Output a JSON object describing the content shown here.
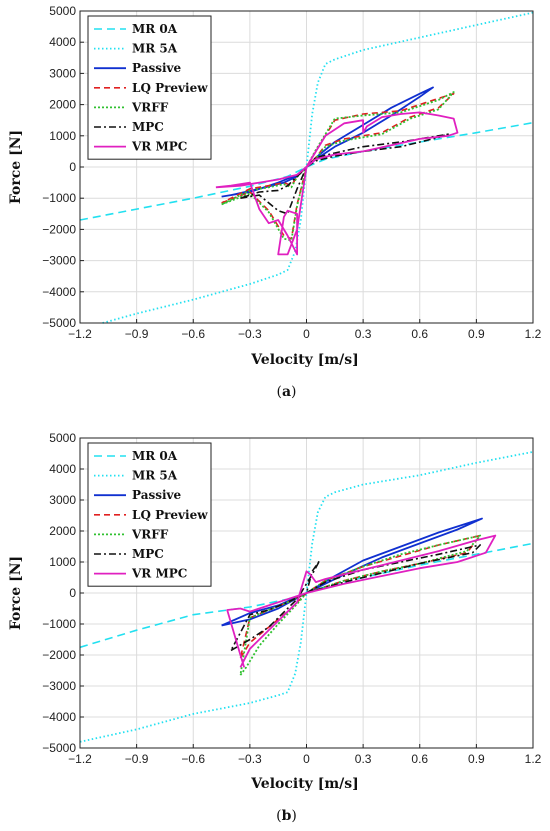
{
  "chart_data": [
    {
      "type": "line",
      "caption": {
        "open": "(",
        "letter": "a",
        "close": ")"
      },
      "xlabel": "Velocity [m/s]",
      "ylabel": "Force [N]",
      "xlim": [
        -1.2,
        1.2
      ],
      "ylim": [
        -5000,
        5000
      ],
      "xticks": [
        -1.2,
        -0.9,
        -0.6,
        -0.3,
        0,
        0.3,
        0.6,
        0.9,
        1.2
      ],
      "xtick_labels": [
        "−1.2",
        "−0.9",
        "−0.6",
        "−0.3",
        "0",
        "0.3",
        "0.6",
        "0.9",
        "1.2"
      ],
      "yticks": [
        -5000,
        -4000,
        -3000,
        -2000,
        -1000,
        0,
        1000,
        2000,
        3000,
        4000,
        5000
      ],
      "ytick_labels": [
        "−5000",
        "−4000",
        "−3000",
        "−2000",
        "−1000",
        "0",
        "1000",
        "2000",
        "3000",
        "4000",
        "5000"
      ],
      "grid": true,
      "legend_position": "top-left",
      "series": [
        {
          "name": "MR 0A",
          "color": "#22e0f0",
          "dash": "8,5",
          "width": 1.6,
          "x": [
            -1.2,
            -0.9,
            -0.6,
            -0.3,
            -0.1,
            0,
            0.1,
            0.3,
            0.6,
            0.9,
            1.2
          ],
          "y": [
            -1700,
            -1350,
            -1000,
            -620,
            -300,
            0,
            250,
            500,
            800,
            1100,
            1420
          ]
        },
        {
          "name": "MR 5A",
          "color": "#22e0f0",
          "dash": "1.5,2.5",
          "width": 1.8,
          "x": [
            -1.08,
            -0.9,
            -0.6,
            -0.3,
            -0.15,
            -0.1,
            -0.06,
            -0.03,
            0,
            0.03,
            0.06,
            0.1,
            0.15,
            0.3,
            0.6,
            0.9,
            1.2
          ],
          "y": [
            -5000,
            -4700,
            -4250,
            -3750,
            -3450,
            -3300,
            -2700,
            -1700,
            0,
            1700,
            2700,
            3300,
            3450,
            3750,
            4150,
            4550,
            4950
          ]
        },
        {
          "name": "Passive",
          "color": "#1030d0",
          "dash": "",
          "width": 1.8,
          "x": [
            -0.4,
            -0.25,
            -0.12,
            -0.05,
            0,
            0.05,
            0.15,
            0.3,
            0.45,
            0.6,
            0.67,
            0.6,
            0.45,
            0.3,
            0.15,
            0.05,
            0,
            -0.05,
            -0.15,
            -0.3,
            -0.45
          ],
          "y": [
            -900,
            -700,
            -500,
            -300,
            0,
            300,
            800,
            1350,
            1900,
            2350,
            2550,
            2250,
            1650,
            1100,
            650,
            250,
            0,
            -250,
            -500,
            -800,
            -950
          ]
        },
        {
          "name": "LQ Preview",
          "color": "#e02020",
          "dash": "6,4",
          "width": 1.6,
          "x": [
            -0.45,
            -0.3,
            -0.2,
            -0.12,
            -0.08,
            -0.05,
            0,
            0.05,
            0.1,
            0.15,
            0.3,
            0.5,
            0.7,
            0.78,
            0.7,
            0.55,
            0.4,
            0.3,
            0.2,
            0.1,
            0.05,
            0,
            -0.05,
            -0.08,
            -0.12,
            -0.2,
            -0.3,
            -0.45
          ],
          "y": [
            -1150,
            -800,
            -1400,
            -2200,
            -2300,
            -1200,
            0,
            500,
            1000,
            1500,
            1700,
            1800,
            2200,
            2350,
            1900,
            1600,
            1100,
            1000,
            900,
            700,
            300,
            0,
            -300,
            -600,
            -500,
            -600,
            -700,
            -1150
          ]
        },
        {
          "name": "VRFF",
          "color": "#30c030",
          "dash": "2,2",
          "width": 1.8,
          "x": [
            -0.45,
            -0.3,
            -0.2,
            -0.12,
            -0.08,
            -0.05,
            0,
            0.05,
            0.1,
            0.15,
            0.3,
            0.5,
            0.7,
            0.78,
            0.7,
            0.55,
            0.4,
            0.3,
            0.2,
            0.1,
            0.05,
            0,
            -0.05,
            -0.08,
            -0.12,
            -0.2,
            -0.3,
            -0.45
          ],
          "y": [
            -1200,
            -850,
            -1450,
            -2300,
            -2350,
            -1250,
            0,
            550,
            1050,
            1550,
            1650,
            1750,
            2150,
            2400,
            1850,
            1550,
            1050,
            950,
            850,
            650,
            280,
            0,
            -320,
            -650,
            -550,
            -650,
            -750,
            -1200
          ]
        },
        {
          "name": "MPC",
          "color": "#111111",
          "dash": "7,3,2,3",
          "width": 1.6,
          "x": [
            -0.35,
            -0.25,
            -0.15,
            -0.1,
            -0.05,
            0,
            0.05,
            0.15,
            0.3,
            0.5,
            0.7,
            0.75,
            0.7,
            0.5,
            0.3,
            0.15,
            0.05,
            0,
            -0.05,
            -0.1,
            -0.15,
            -0.25,
            -0.35
          ],
          "y": [
            -1000,
            -900,
            -1400,
            -1500,
            -700,
            0,
            300,
            450,
            650,
            800,
            1000,
            1050,
            950,
            650,
            500,
            350,
            200,
            0,
            -300,
            -600,
            -750,
            -800,
            -1000
          ]
        },
        {
          "name": "VR MPC",
          "color": "#e020c0",
          "dash": "",
          "width": 1.8,
          "x": [
            -0.48,
            -0.4,
            -0.3,
            -0.25,
            -0.2,
            -0.15,
            -0.1,
            -0.05,
            -0.05,
            -0.1,
            -0.12,
            -0.15,
            -0.1,
            -0.05,
            0,
            0.05,
            0.1,
            0.2,
            0.3,
            0.3,
            0.32,
            0.4,
            0.5,
            0.6,
            0.7,
            0.78,
            0.8,
            0.75,
            0.6,
            0.45,
            0.3,
            0.15,
            0.05,
            0,
            -0.05,
            -0.15,
            -0.25,
            -0.35,
            -0.48
          ],
          "y": [
            -650,
            -600,
            -500,
            -1350,
            -1800,
            -1700,
            -2200,
            -2800,
            -1500,
            -1400,
            -1600,
            -2800,
            -2800,
            -2000,
            0,
            500,
            1000,
            1400,
            1500,
            1100,
            1300,
            1600,
            1700,
            1750,
            1650,
            1550,
            1100,
            1000,
            900,
            700,
            500,
            400,
            250,
            0,
            -250,
            -400,
            -500,
            -600,
            -650
          ]
        }
      ]
    },
    {
      "type": "line",
      "caption": {
        "open": "(",
        "letter": "b",
        "close": ")"
      },
      "xlabel": "Velocity [m/s]",
      "ylabel": "Force [N]",
      "xlim": [
        -1.2,
        1.2
      ],
      "ylim": [
        -5000,
        5000
      ],
      "xticks": [
        -1.2,
        -0.9,
        -0.6,
        -0.3,
        0,
        0.3,
        0.6,
        0.9,
        1.2
      ],
      "xtick_labels": [
        "−1.2",
        "−0.9",
        "−0.6",
        "−0.3",
        "0",
        "0.3",
        "0.6",
        "0.9",
        "1.2"
      ],
      "yticks": [
        -5000,
        -4000,
        -3000,
        -2000,
        -1000,
        0,
        1000,
        2000,
        3000,
        4000,
        5000
      ],
      "ytick_labels": [
        "−5000",
        "−4000",
        "−3000",
        "−2000",
        "−1000",
        "0",
        "1000",
        "2000",
        "3000",
        "4000",
        "5000"
      ],
      "grid": true,
      "legend_position": "top-left",
      "series": [
        {
          "name": "MR 0A",
          "color": "#22e0f0",
          "dash": "8,5",
          "width": 1.6,
          "x": [
            -1.2,
            -0.9,
            -0.6,
            -0.3,
            -0.1,
            0,
            0.1,
            0.3,
            0.6,
            0.9,
            1.2
          ],
          "y": [
            -1750,
            -1200,
            -700,
            -450,
            -200,
            0,
            200,
            500,
            900,
            1250,
            1600
          ]
        },
        {
          "name": "MR 5A",
          "color": "#22e0f0",
          "dash": "1.5,2.5",
          "width": 1.8,
          "x": [
            -1.2,
            -0.9,
            -0.6,
            -0.3,
            -0.15,
            -0.1,
            -0.06,
            -0.03,
            0,
            0.03,
            0.06,
            0.1,
            0.15,
            0.3,
            0.6,
            0.9,
            1.2
          ],
          "y": [
            -4800,
            -4400,
            -3900,
            -3550,
            -3300,
            -3200,
            -2600,
            -1600,
            0,
            1600,
            2600,
            3100,
            3250,
            3500,
            3800,
            4200,
            4550
          ]
        },
        {
          "name": "Passive",
          "color": "#1030d0",
          "dash": "",
          "width": 1.8,
          "x": [
            -0.45,
            -0.3,
            -0.15,
            0,
            0.15,
            0.3,
            0.5,
            0.7,
            0.93,
            0.8,
            0.6,
            0.4,
            0.2,
            0,
            -0.15,
            -0.3,
            -0.45
          ],
          "y": [
            -1050,
            -850,
            -500,
            0,
            550,
            1050,
            1500,
            1950,
            2400,
            2050,
            1600,
            1150,
            600,
            0,
            -400,
            -650,
            -1050
          ]
        },
        {
          "name": "LQ Preview",
          "color": "#e02020",
          "dash": "6,4",
          "width": 1.6,
          "x": [
            -0.35,
            -0.3,
            -0.2,
            -0.1,
            0,
            0.1,
            0.3,
            0.5,
            0.7,
            0.92,
            0.85,
            0.6,
            0.4,
            0.2,
            0,
            -0.1,
            -0.2,
            -0.3,
            -0.35
          ],
          "y": [
            -2100,
            -1600,
            -1100,
            -600,
            0,
            400,
            850,
            1200,
            1550,
            1850,
            1300,
            950,
            700,
            400,
            0,
            -300,
            -550,
            -800,
            -2100
          ]
        },
        {
          "name": "VRFF",
          "color": "#30c030",
          "dash": "2,2",
          "width": 1.8,
          "x": [
            -0.35,
            -0.32,
            -0.25,
            -0.15,
            -0.05,
            0,
            0.1,
            0.3,
            0.5,
            0.7,
            0.92,
            0.85,
            0.6,
            0.4,
            0.2,
            0,
            -0.1,
            -0.2,
            -0.3,
            -0.35
          ],
          "y": [
            -2650,
            -2400,
            -1700,
            -1000,
            -350,
            0,
            400,
            850,
            1250,
            1550,
            1850,
            1350,
            950,
            700,
            400,
            0,
            -300,
            -550,
            -800,
            -2650
          ]
        },
        {
          "name": "MPC",
          "color": "#111111",
          "dash": "7,3,2,3",
          "width": 1.6,
          "x": [
            -0.4,
            -0.3,
            -0.2,
            -0.1,
            -0.05,
            0.03,
            0.07,
            0.03,
            0,
            0.1,
            0.3,
            0.5,
            0.7,
            0.92,
            0.88,
            0.6,
            0.4,
            0.2,
            0,
            -0.1,
            -0.2,
            -0.3,
            -0.4
          ],
          "y": [
            -1850,
            -1500,
            -1100,
            -500,
            -200,
            600,
            1050,
            700,
            0,
            350,
            750,
            1000,
            1250,
            1550,
            1300,
            950,
            650,
            350,
            0,
            -300,
            -550,
            -700,
            -1850
          ]
        },
        {
          "name": "VR MPC",
          "color": "#e020c0",
          "dash": "",
          "width": 1.8,
          "x": [
            -0.35,
            -0.3,
            -0.25,
            -0.15,
            -0.05,
            0,
            0.02,
            0.05,
            0.1,
            0.3,
            0.5,
            0.7,
            0.9,
            1.0,
            0.95,
            0.8,
            0.6,
            0.4,
            0.2,
            0,
            -0.1,
            -0.2,
            -0.3,
            -0.35,
            -0.42,
            -0.35,
            -0.33
          ],
          "y": [
            -2400,
            -1800,
            -1500,
            -900,
            -300,
            700,
            600,
            350,
            450,
            750,
            1050,
            1350,
            1700,
            1850,
            1300,
            1000,
            800,
            550,
            300,
            0,
            -200,
            -400,
            -600,
            -500,
            -550,
            -2000,
            -2400
          ]
        }
      ]
    }
  ]
}
